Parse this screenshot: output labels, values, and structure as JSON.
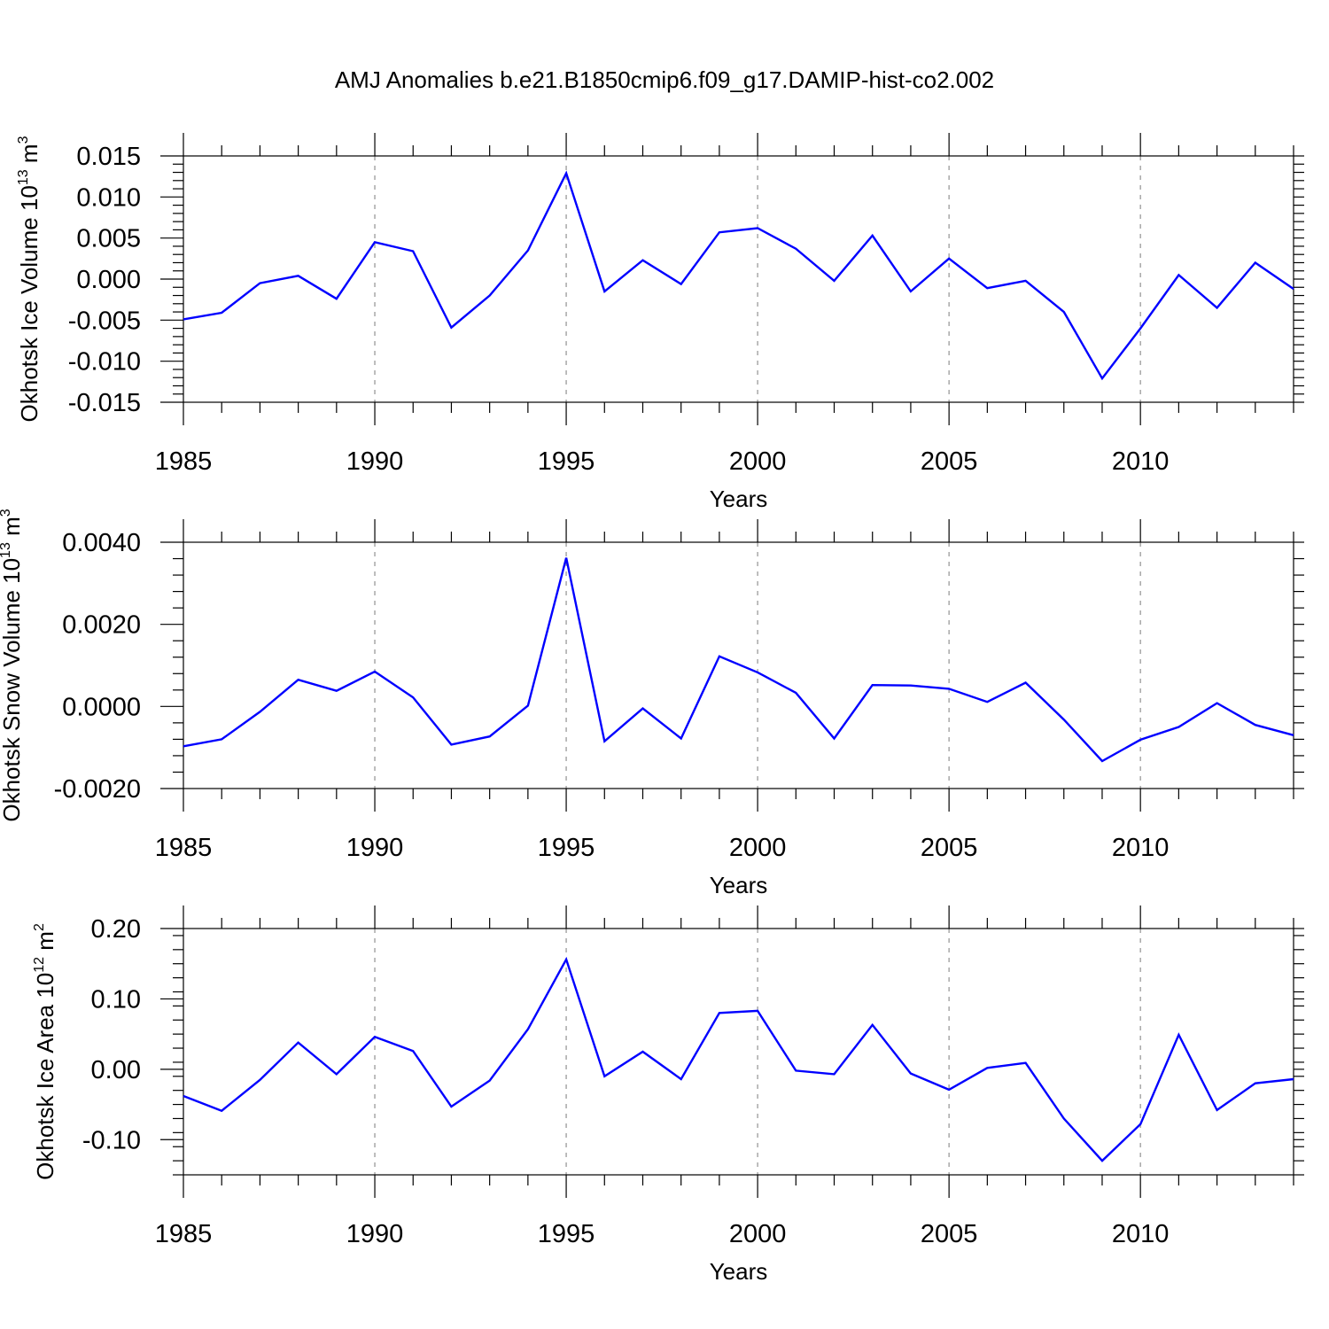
{
  "title": "AMJ Anomalies b.e21.B1850cmip6.f09_g17.DAMIP-hist-co2.002",
  "chart_data": [
    {
      "type": "line",
      "ylabel": "Okhotsk Ice Volume 10",
      "ylabel_exp": "13",
      "ylabel_unit": " m",
      "ylabel_unit_exp": "3",
      "xlabel": "Years",
      "xlim": [
        1985,
        2014
      ],
      "ylim": [
        -0.015,
        0.015
      ],
      "yticks": [
        0.015,
        0.01,
        0.005,
        0.0,
        -0.005,
        -0.01,
        -0.015
      ],
      "ytick_labels": [
        "0.015",
        "0.010",
        "0.005",
        "0.000",
        "-0.005",
        "-0.010",
        "-0.015"
      ],
      "xticks": [
        1985,
        1990,
        1995,
        2000,
        2005,
        2010
      ],
      "xtick_labels": [
        "1985",
        "1990",
        "1995",
        "2000",
        "2005",
        "2010"
      ],
      "grid_x": [
        1990,
        1995,
        2000,
        2005,
        2010
      ],
      "color": "#0000ff",
      "x": [
        1985,
        1986,
        1987,
        1988,
        1989,
        1990,
        1991,
        1992,
        1993,
        1994,
        1995,
        1996,
        1997,
        1998,
        1999,
        2000,
        2001,
        2002,
        2003,
        2004,
        2005,
        2006,
        2007,
        2008,
        2009,
        2010,
        2011,
        2012,
        2013,
        2014
      ],
      "values": [
        -0.0049,
        -0.0041,
        -0.0005,
        0.0004,
        -0.0024,
        0.0045,
        0.0034,
        -0.0059,
        -0.002,
        0.0035,
        0.0129,
        -0.0015,
        0.0023,
        -0.0006,
        0.0057,
        0.0062,
        0.0037,
        -0.0002,
        0.0053,
        -0.0015,
        0.0025,
        -0.0011,
        -0.0002,
        -0.004,
        -0.0121,
        -0.006,
        0.0005,
        -0.0035,
        0.002,
        -0.0012
      ]
    },
    {
      "type": "line",
      "ylabel": "Okhotsk Snow Volume 10",
      "ylabel_exp": "13",
      "ylabel_unit": " m",
      "ylabel_unit_exp": "3",
      "xlabel": "Years",
      "xlim": [
        1985,
        2014
      ],
      "ylim": [
        -0.002,
        0.004
      ],
      "yticks": [
        0.004,
        0.002,
        0.0,
        -0.002
      ],
      "ytick_labels": [
        "0.0040",
        "0.0020",
        "0.0000",
        "-0.0020"
      ],
      "xticks": [
        1985,
        1990,
        1995,
        2000,
        2005,
        2010
      ],
      "xtick_labels": [
        "1985",
        "1990",
        "1995",
        "2000",
        "2005",
        "2010"
      ],
      "grid_x": [
        1990,
        1995,
        2000,
        2005,
        2010
      ],
      "color": "#0000ff",
      "x": [
        1985,
        1986,
        1987,
        1988,
        1989,
        1990,
        1991,
        1992,
        1993,
        1994,
        1995,
        1996,
        1997,
        1998,
        1999,
        2000,
        2001,
        2002,
        2003,
        2004,
        2005,
        2006,
        2007,
        2008,
        2009,
        2010,
        2011,
        2012,
        2013,
        2014
      ],
      "values": [
        -0.00097,
        -0.0008,
        -0.00013,
        0.00065,
        0.00038,
        0.00085,
        0.00022,
        -0.00093,
        -0.00073,
        2e-05,
        0.00362,
        -0.00085,
        -5e-05,
        -0.00078,
        0.00122,
        0.00083,
        0.00033,
        -0.00078,
        0.00052,
        0.00051,
        0.00043,
        0.00011,
        0.00058,
        -0.00032,
        -0.00133,
        -0.00081,
        -0.0005,
        8e-05,
        -0.00045,
        -0.0007
      ]
    },
    {
      "type": "line",
      "ylabel": "Okhotsk Ice Area 10",
      "ylabel_exp": "12",
      "ylabel_unit": " m",
      "ylabel_unit_exp": "2",
      "xlabel": "Years",
      "xlim": [
        1985,
        2014
      ],
      "ylim": [
        -0.15,
        0.2
      ],
      "yticks": [
        0.2,
        0.1,
        0.0,
        -0.1
      ],
      "ytick_labels": [
        "0.20",
        "0.10",
        "0.00",
        "-0.10"
      ],
      "xticks": [
        1985,
        1990,
        1995,
        2000,
        2005,
        2010
      ],
      "xtick_labels": [
        "1985",
        "1990",
        "1995",
        "2000",
        "2005",
        "2010"
      ],
      "grid_x": [
        1990,
        1995,
        2000,
        2005,
        2010
      ],
      "color": "#0000ff",
      "x": [
        1985,
        1986,
        1987,
        1988,
        1989,
        1990,
        1991,
        1992,
        1993,
        1994,
        1995,
        1996,
        1997,
        1998,
        1999,
        2000,
        2001,
        2002,
        2003,
        2004,
        2005,
        2006,
        2007,
        2008,
        2009,
        2010,
        2011,
        2012,
        2013,
        2014
      ],
      "values": [
        -0.038,
        -0.059,
        -0.015,
        0.038,
        -0.007,
        0.046,
        0.026,
        -0.053,
        -0.016,
        0.057,
        0.156,
        -0.01,
        0.025,
        -0.014,
        0.08,
        0.083,
        -0.002,
        -0.007,
        0.063,
        -0.006,
        -0.029,
        0.002,
        0.009,
        -0.07,
        -0.13,
        -0.078,
        0.049,
        -0.058,
        -0.02,
        -0.014
      ]
    }
  ]
}
